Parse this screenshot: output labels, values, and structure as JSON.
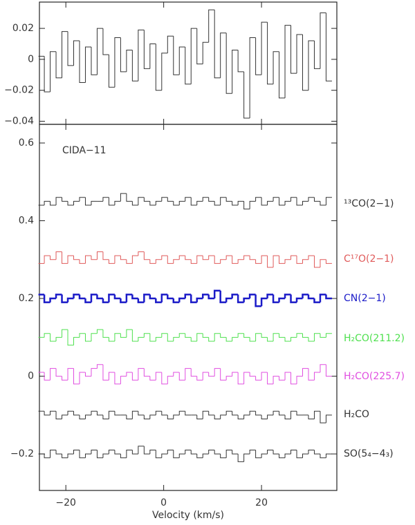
{
  "chart_data": [
    {
      "type": "step",
      "color": "#333333",
      "x": [
        -25,
        -23.8,
        -22.6,
        -21.4,
        -20.2,
        -19,
        -17.8,
        -16.6,
        -15.4,
        -14.2,
        -13,
        -11.8,
        -10.6,
        -9.4,
        -8.2,
        -7,
        -5.8,
        -4.6,
        -3.4,
        -2.2,
        -1,
        0.2,
        1.4,
        2.6,
        3.8,
        5,
        6.2,
        7.4,
        8.6,
        9.8,
        11,
        12.2,
        13.4,
        14.6,
        15.8,
        17,
        18.2,
        19.4,
        20.6,
        21.8,
        23,
        24.2,
        25.4,
        26.6,
        27.8,
        29,
        30.2,
        31.4,
        32.6,
        33.8
      ],
      "values": [
        0.002,
        -0.021,
        0.005,
        -0.012,
        0.018,
        -0.004,
        0.012,
        -0.015,
        0.008,
        -0.01,
        0.02,
        0.003,
        -0.018,
        0.014,
        -0.008,
        0.006,
        -0.014,
        0.019,
        -0.006,
        0.01,
        -0.02,
        0.004,
        0.015,
        -0.01,
        0.008,
        -0.016,
        0.02,
        -0.003,
        0.011,
        0.032,
        -0.012,
        0.017,
        -0.022,
        0.006,
        -0.008,
        -0.038,
        0.014,
        -0.01,
        0.024,
        -0.016,
        0.005,
        -0.025,
        0.022,
        -0.009,
        0.016,
        -0.02,
        0.012,
        -0.006,
        0.03,
        -0.014
      ],
      "xlim": [
        -25.4,
        35.4
      ],
      "ylim": [
        -0.042,
        0.037
      ],
      "xticks": [
        {
          "value": -20,
          "label": "−20"
        },
        0,
        20
      ],
      "yticks": [
        {
          "value": -0.04,
          "label": "−0.04"
        },
        {
          "value": -0.02,
          "label": "−0.02"
        },
        0,
        0.02
      ]
    },
    {
      "type": "step",
      "annotation": "CIDA−11",
      "xlabel": "Velocity (km/s)",
      "x": [
        -25,
        -23.8,
        -22.6,
        -21.4,
        -20.2,
        -19,
        -17.8,
        -16.6,
        -15.4,
        -14.2,
        -13,
        -11.8,
        -10.6,
        -9.4,
        -8.2,
        -7,
        -5.8,
        -4.6,
        -3.4,
        -2.2,
        -1,
        0.2,
        1.4,
        2.6,
        3.8,
        5,
        6.2,
        7.4,
        8.6,
        9.8,
        11,
        12.2,
        13.4,
        14.6,
        15.8,
        17,
        18.2,
        19.4,
        20.6,
        21.8,
        23,
        24.2,
        25.4,
        26.6,
        27.8,
        29,
        30.2,
        31.4,
        32.6,
        33.8
      ],
      "xlim": [
        -25.4,
        35.4
      ],
      "ylim": [
        -0.294,
        0.648
      ],
      "xticks": [
        {
          "value": -20,
          "label": "−20"
        },
        0,
        20
      ],
      "yticks": [
        {
          "value": -0.2,
          "label": "−0.2"
        },
        0,
        0.2,
        0.4,
        0.6
      ],
      "series": [
        {
          "name": "¹³CO(2−1)",
          "color": "#333333",
          "line_width": 1,
          "values": [
            0.44,
            0.45,
            0.44,
            0.46,
            0.45,
            0.44,
            0.45,
            0.46,
            0.44,
            0.45,
            0.45,
            0.46,
            0.44,
            0.45,
            0.47,
            0.45,
            0.44,
            0.46,
            0.45,
            0.44,
            0.45,
            0.46,
            0.45,
            0.44,
            0.45,
            0.46,
            0.44,
            0.45,
            0.46,
            0.45,
            0.44,
            0.46,
            0.45,
            0.44,
            0.45,
            0.43,
            0.45,
            0.46,
            0.44,
            0.45,
            0.46,
            0.44,
            0.45,
            0.46,
            0.44,
            0.45,
            0.46,
            0.45,
            0.44,
            0.46
          ]
        },
        {
          "name": "C¹⁷O(2−1)",
          "color": "#e05a5a",
          "line_width": 1,
          "values": [
            0.29,
            0.31,
            0.3,
            0.32,
            0.29,
            0.31,
            0.3,
            0.29,
            0.31,
            0.3,
            0.32,
            0.3,
            0.29,
            0.31,
            0.3,
            0.29,
            0.31,
            0.32,
            0.3,
            0.29,
            0.3,
            0.31,
            0.29,
            0.3,
            0.31,
            0.3,
            0.29,
            0.31,
            0.3,
            0.31,
            0.29,
            0.3,
            0.31,
            0.29,
            0.3,
            0.31,
            0.3,
            0.29,
            0.31,
            0.28,
            0.31,
            0.29,
            0.3,
            0.31,
            0.29,
            0.3,
            0.31,
            0.28,
            0.3,
            0.29
          ]
        },
        {
          "name": "CN(2−1)",
          "color": "#1a1ac8",
          "line_width": 2.5,
          "values": [
            0.21,
            0.19,
            0.2,
            0.21,
            0.19,
            0.2,
            0.21,
            0.2,
            0.19,
            0.21,
            0.2,
            0.19,
            0.21,
            0.2,
            0.19,
            0.21,
            0.2,
            0.19,
            0.21,
            0.2,
            0.19,
            0.21,
            0.2,
            0.19,
            0.2,
            0.21,
            0.19,
            0.2,
            0.21,
            0.2,
            0.22,
            0.19,
            0.2,
            0.21,
            0.19,
            0.2,
            0.21,
            0.18,
            0.2,
            0.21,
            0.19,
            0.2,
            0.21,
            0.19,
            0.2,
            0.21,
            0.2,
            0.19,
            0.21,
            0.2
          ]
        },
        {
          "name": "H₂CO(211.2)",
          "color": "#4ee04e",
          "line_width": 1,
          "values": [
            0.1,
            0.11,
            0.09,
            0.1,
            0.12,
            0.08,
            0.1,
            0.11,
            0.09,
            0.11,
            0.12,
            0.1,
            0.09,
            0.11,
            0.1,
            0.12,
            0.09,
            0.1,
            0.11,
            0.09,
            0.1,
            0.11,
            0.09,
            0.1,
            0.11,
            0.1,
            0.09,
            0.11,
            0.1,
            0.09,
            0.11,
            0.1,
            0.09,
            0.1,
            0.11,
            0.1,
            0.09,
            0.11,
            0.1,
            0.09,
            0.11,
            0.1,
            0.09,
            0.1,
            0.11,
            0.1,
            0.09,
            0.11,
            0.1,
            0.11
          ]
        },
        {
          "name": "H₂CO(225.7)",
          "color": "#e04ee0",
          "line_width": 1,
          "values": [
            0.01,
            -0.01,
            0.02,
            0.0,
            -0.01,
            0.02,
            -0.02,
            0.01,
            0.0,
            0.02,
            0.03,
            -0.01,
            0.01,
            -0.02,
            0.0,
            0.01,
            -0.01,
            0.02,
            0.0,
            -0.01,
            0.01,
            -0.02,
            0.0,
            0.01,
            -0.01,
            0.02,
            0.0,
            -0.01,
            0.01,
            0.0,
            0.02,
            -0.01,
            0.0,
            0.01,
            -0.02,
            0.01,
            0.0,
            -0.01,
            0.01,
            -0.02,
            0.0,
            -0.01,
            0.01,
            -0.02,
            0.0,
            0.02,
            -0.01,
            0.01,
            0.03,
            0.0
          ]
        },
        {
          "name": "H₂CO",
          "color": "#333333",
          "line_width": 1,
          "values": [
            -0.09,
            -0.1,
            -0.09,
            -0.11,
            -0.1,
            -0.09,
            -0.1,
            -0.11,
            -0.1,
            -0.09,
            -0.1,
            -0.11,
            -0.09,
            -0.1,
            -0.1,
            -0.11,
            -0.09,
            -0.1,
            -0.11,
            -0.1,
            -0.09,
            -0.1,
            -0.11,
            -0.1,
            -0.09,
            -0.1,
            -0.1,
            -0.11,
            -0.09,
            -0.1,
            -0.11,
            -0.1,
            -0.09,
            -0.1,
            -0.11,
            -0.1,
            -0.09,
            -0.1,
            -0.11,
            -0.1,
            -0.09,
            -0.1,
            -0.11,
            -0.09,
            -0.1,
            -0.1,
            -0.11,
            -0.09,
            -0.12,
            -0.1
          ]
        },
        {
          "name": "SO(5₄−4₃)",
          "color": "#333333",
          "line_width": 1,
          "values": [
            -0.2,
            -0.21,
            -0.19,
            -0.2,
            -0.21,
            -0.2,
            -0.19,
            -0.21,
            -0.2,
            -0.19,
            -0.21,
            -0.2,
            -0.19,
            -0.2,
            -0.21,
            -0.19,
            -0.2,
            -0.18,
            -0.2,
            -0.19,
            -0.21,
            -0.2,
            -0.19,
            -0.21,
            -0.2,
            -0.19,
            -0.2,
            -0.21,
            -0.2,
            -0.19,
            -0.2,
            -0.21,
            -0.19,
            -0.2,
            -0.22,
            -0.2,
            -0.19,
            -0.21,
            -0.2,
            -0.19,
            -0.2,
            -0.21,
            -0.2,
            -0.19,
            -0.21,
            -0.2,
            -0.19,
            -0.2,
            -0.21,
            -0.2
          ]
        }
      ]
    }
  ]
}
